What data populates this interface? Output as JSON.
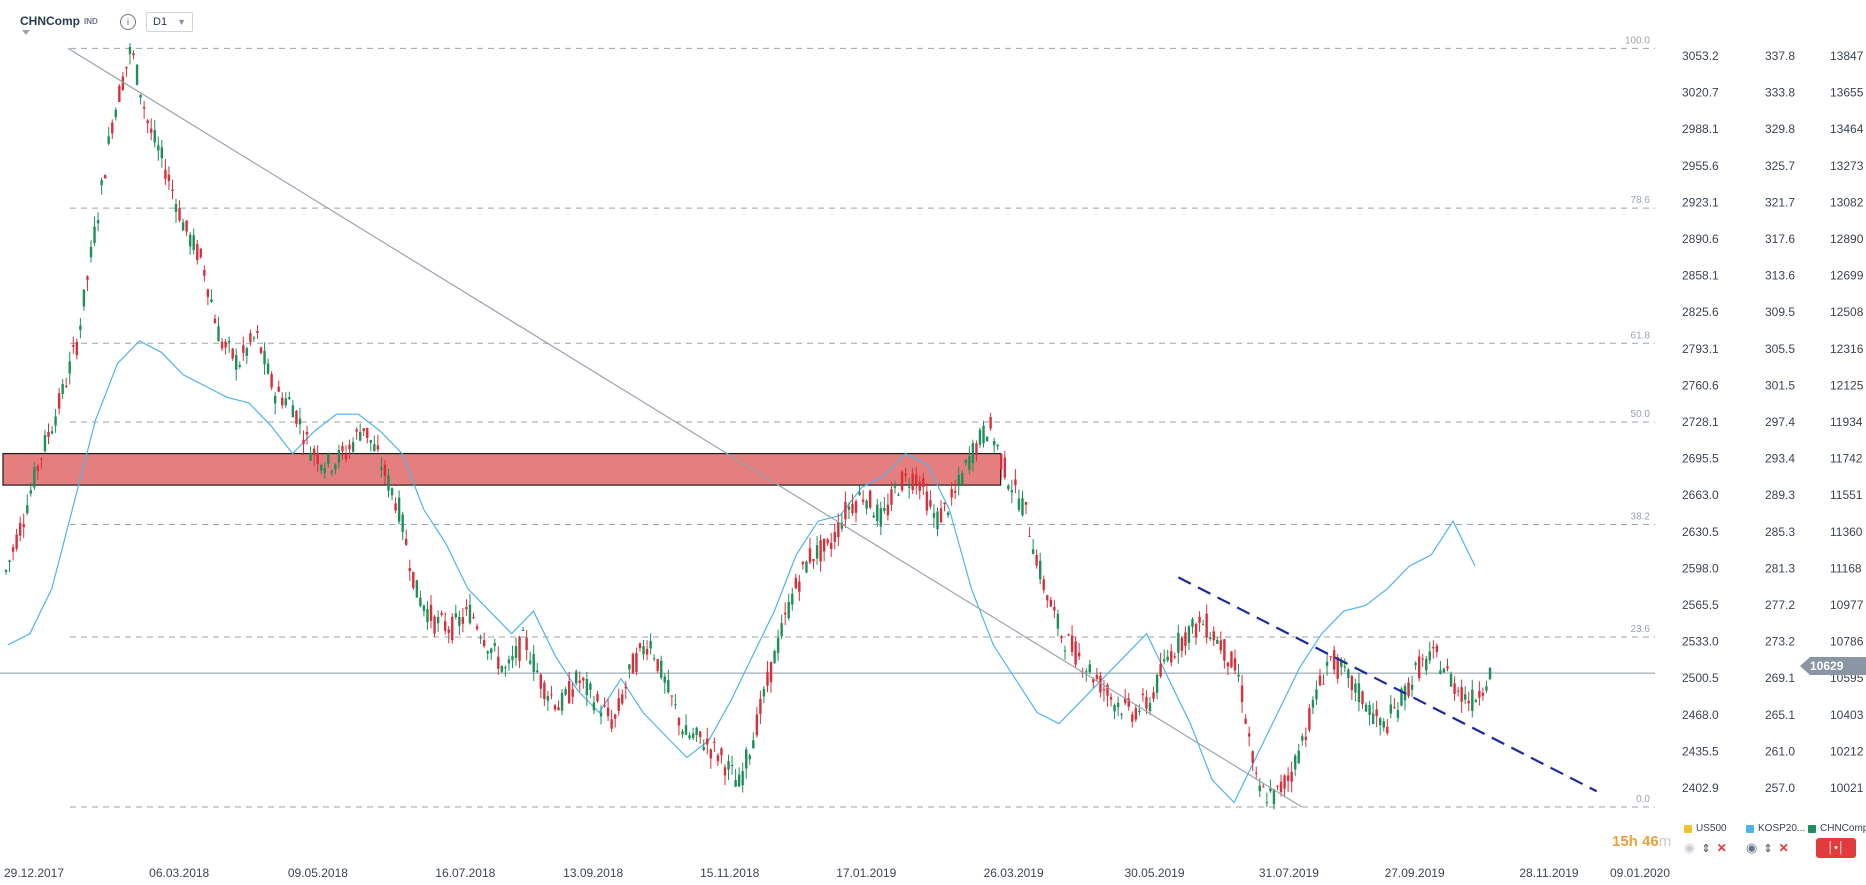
{
  "header": {
    "symbol": "CHNComp",
    "type_badge": "IND",
    "info_icon": "info-icon",
    "timeframe": "D1"
  },
  "price_tag": "10629",
  "timer": {
    "value": "15h 46",
    "unit": "m"
  },
  "legend": [
    {
      "label": "US500",
      "color": "#f3c12b"
    },
    {
      "label": "KOSP20...",
      "color": "#4fb4ec"
    },
    {
      "label": "CHNComp...",
      "color": "#1e8f5a"
    }
  ],
  "colors": {
    "up": "#1e8f5a",
    "down": "#d92f3a",
    "kospi": "#4fb4ec",
    "zone": "#e57f7f",
    "trend": "#1a2a9a"
  },
  "chart_data": {
    "type": "candlestick",
    "x_tick_labels": [
      "29.12.2017",
      "06.03.2018",
      "09.05.2018",
      "16.07.2018",
      "13.09.2018",
      "15.11.2018",
      "17.01.2019",
      "26.03.2019",
      "30.05.2019",
      "31.07.2019",
      "27.09.2019",
      "28.11.2019",
      "09.01.2020"
    ],
    "y_axes": [
      {
        "name": "axis-1",
        "ticks": [
          3053.2,
          3020.7,
          2988.1,
          2955.6,
          2923.1,
          2890.6,
          2858.1,
          2825.6,
          2793.1,
          2760.6,
          2728.1,
          2695.5,
          2663.0,
          2630.5,
          2598.0,
          2565.5,
          2533.0,
          2500.5,
          2468.0,
          2435.5,
          2402.9
        ]
      },
      {
        "name": "axis-2",
        "ticks": [
          337.8,
          333.8,
          329.8,
          325.7,
          321.7,
          317.6,
          313.6,
          309.5,
          305.5,
          301.5,
          297.4,
          293.4,
          289.3,
          285.3,
          281.3,
          277.2,
          273.2,
          269.1,
          265.1,
          261.0,
          257.0
        ]
      },
      {
        "name": "axis-3",
        "ticks": [
          13847,
          13655,
          13464,
          13273,
          13082,
          12890,
          12699,
          12508,
          12316,
          12125,
          11934,
          11742,
          11551,
          11360,
          11168,
          10977,
          10786,
          10595,
          10403,
          10212,
          10021
        ]
      }
    ],
    "fibonacci_levels": [
      {
        "label": "100.0",
        "value": 3060
      },
      {
        "label": "78.6",
        "value": 2918
      },
      {
        "label": "61.8",
        "value": 2798
      },
      {
        "label": "50.0",
        "value": 2728
      },
      {
        "label": "38.2",
        "value": 2637
      },
      {
        "label": "23.6",
        "value": 2537
      },
      {
        "label": "0.0",
        "value": 2386
      }
    ],
    "current_price_level": 2505,
    "resistance_zone": {
      "from": "29.12.2017",
      "to": "20.03.2019",
      "low": 2672,
      "high": 2700
    },
    "trendlines": [
      {
        "name": "diagonal",
        "from": [
          "29.12.2017",
          3060
        ],
        "to": [
          "06.08.2019",
          2386
        ],
        "style": "solid"
      },
      {
        "name": "descending",
        "from": [
          "10.06.2019",
          2590
        ],
        "to": [
          "20.12.2019",
          2400
        ],
        "style": "dashed"
      }
    ],
    "series_close": {
      "CHNComp": [
        2595,
        2645,
        2700,
        2745,
        2800,
        2900,
        3000,
        3060,
        2990,
        2950,
        2900,
        2870,
        2800,
        2780,
        2805,
        2755,
        2745,
        2705,
        2690,
        2700,
        2725,
        2690,
        2650,
        2575,
        2550,
        2545,
        2560,
        2530,
        2505,
        2535,
        2495,
        2475,
        2500,
        2480,
        2460,
        2510,
        2535,
        2490,
        2450,
        2445,
        2430,
        2405,
        2460,
        2520,
        2575,
        2610,
        2615,
        2650,
        2665,
        2640,
        2675,
        2680,
        2640,
        2660,
        2700,
        2725,
        2680,
        2650,
        2585,
        2540,
        2520,
        2500,
        2480,
        2470,
        2480,
        2520,
        2540,
        2550,
        2530,
        2500,
        2400,
        2395,
        2420,
        2470,
        2520,
        2500,
        2480,
        2455,
        2480,
        2510,
        2520,
        2495,
        2480,
        2505
      ],
      "KOSPI": [
        2530,
        2540,
        2580,
        2655,
        2730,
        2780,
        2800,
        2790,
        2770,
        2760,
        2750,
        2745,
        2725,
        2700,
        2720,
        2735,
        2735,
        2720,
        2700,
        2650,
        2620,
        2580,
        2560,
        2540,
        2560,
        2520,
        2490,
        2470,
        2500,
        2470,
        2450,
        2430,
        2445,
        2480,
        2520,
        2560,
        2610,
        2640,
        2645,
        2670,
        2680,
        2700,
        2690,
        2650,
        2580,
        2530,
        2500,
        2470,
        2460,
        2480,
        2500,
        2520,
        2540,
        2500,
        2460,
        2410,
        2390,
        2430,
        2470,
        2510,
        2540,
        2560,
        2565,
        2580,
        2600,
        2610,
        2640,
        2600
      ]
    }
  }
}
